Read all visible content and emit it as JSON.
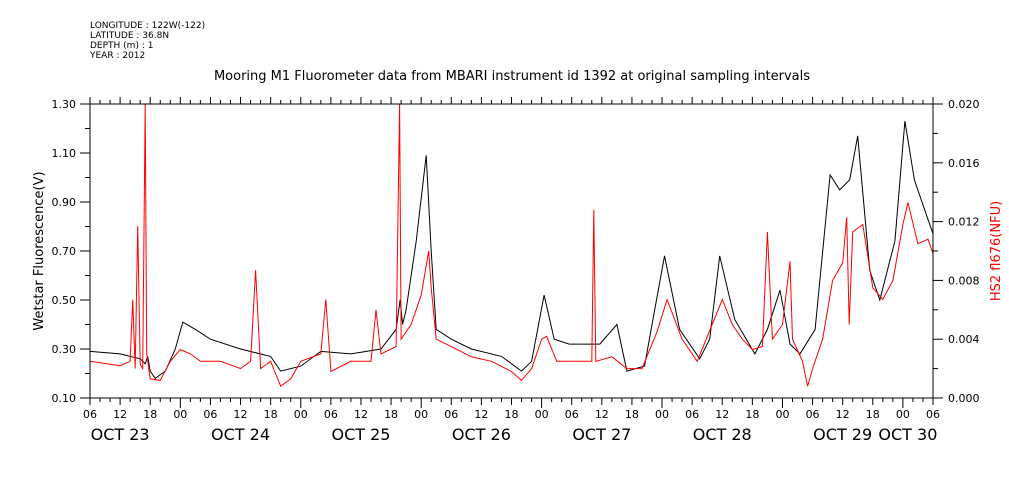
{
  "header": {
    "longitude": "LONGITUDE : 122W(-122)",
    "latitude": "LATITUDE : 36.8N",
    "depth": "DEPTH (m) : 1",
    "year": "YEAR : 2012"
  },
  "chart_data": {
    "type": "line",
    "title": "Mooring M1 Fluorometer data from MBARI instrument id 1392 at original sampling intervals",
    "xlabel": "",
    "ylabel": "Wetstar Fluorescence(V)",
    "y2label": "HS2 fl676(NFU)",
    "x_units": "hours since OCT 23 06:00, 2012",
    "xlim": [
      0,
      168
    ],
    "ylim": [
      0.1,
      1.3
    ],
    "y2lim": [
      0.0,
      0.02
    ],
    "yticks": [
      "0.10",
      "0.30",
      "0.50",
      "0.70",
      "0.90",
      "1.10",
      "1.30"
    ],
    "y2ticks": [
      "0.000",
      "0.004",
      "0.008",
      "0.012",
      "0.016",
      "0.020"
    ],
    "xticks_hours": [
      "06",
      "12",
      "18",
      "00",
      "06",
      "12",
      "18",
      "00",
      "06",
      "12",
      "18",
      "00",
      "06",
      "12",
      "18",
      "00",
      "06",
      "12",
      "18",
      "00",
      "06",
      "12",
      "18",
      "00",
      "06",
      "12",
      "18",
      "00",
      "06"
    ],
    "day_labels": [
      {
        "label": "OCT 23",
        "hour": 6
      },
      {
        "label": "OCT 24",
        "hour": 30
      },
      {
        "label": "OCT 25",
        "hour": 54
      },
      {
        "label": "OCT 26",
        "hour": 78
      },
      {
        "label": "OCT 27",
        "hour": 102
      },
      {
        "label": "OCT 28",
        "hour": 126
      },
      {
        "label": "OCT 29",
        "hour": 150
      },
      {
        "label": "OCT 30",
        "hour": 163
      }
    ],
    "series": [
      {
        "name": "Wetstar Fluorescence(V)",
        "axis": "left",
        "color": "#000000",
        "x": [
          0,
          6,
          10,
          11,
          11.5,
          12,
          13,
          15,
          17,
          18.5,
          21,
          24,
          30,
          36,
          38,
          42,
          46,
          52,
          58,
          61,
          61.8,
          62.3,
          63,
          65,
          67,
          68,
          69,
          72,
          76,
          82,
          86,
          88,
          90.5,
          92.5,
          95.5,
          101.6,
          105,
          107,
          110.5,
          114.5,
          117.5,
          121.5,
          123.5,
          125.5,
          128.5,
          132.5,
          135,
          137.5,
          139.5,
          141.5,
          144.5,
          147.5,
          149.4,
          151.4,
          153,
          155.4,
          157.4,
          160.4,
          162.4,
          164.3,
          166.3,
          168
        ],
        "y": [
          0.29,
          0.28,
          0.26,
          0.24,
          0.27,
          0.21,
          0.18,
          0.21,
          0.3,
          0.41,
          0.38,
          0.34,
          0.3,
          0.27,
          0.21,
          0.23,
          0.29,
          0.28,
          0.3,
          0.38,
          0.5,
          0.4,
          0.46,
          0.74,
          1.09,
          0.7,
          0.38,
          0.34,
          0.3,
          0.27,
          0.21,
          0.25,
          0.52,
          0.34,
          0.32,
          0.32,
          0.4,
          0.21,
          0.23,
          0.68,
          0.38,
          0.26,
          0.34,
          0.68,
          0.42,
          0.28,
          0.38,
          0.54,
          0.32,
          0.28,
          0.38,
          1.01,
          0.95,
          0.99,
          1.17,
          0.62,
          0.5,
          0.74,
          1.23,
          0.99,
          0.87,
          0.77
        ]
      },
      {
        "name": "HS2 fl676(NFU)",
        "axis": "right",
        "color": "#ff0000",
        "x": [
          0,
          6,
          8,
          8.5,
          9,
          9.5,
          10,
          10.5,
          11,
          11.3,
          12,
          14,
          16,
          18,
          20,
          22,
          26,
          30,
          32,
          33,
          34,
          36,
          38,
          40,
          42,
          46,
          47,
          48,
          52,
          56,
          57,
          58,
          61,
          61.7,
          62,
          64,
          66,
          67.5,
          68,
          69,
          72,
          76,
          80,
          84,
          86,
          88,
          90,
          91,
          93,
          96,
          100,
          100.4,
          100.8,
          104,
          107,
          110,
          113,
          115,
          118,
          121,
          124,
          126,
          128,
          130,
          132,
          134,
          135,
          136,
          138,
          139.5,
          140,
          142,
          143,
          144,
          146,
          148,
          150,
          150.8,
          151.3,
          152,
          154,
          156,
          158,
          160,
          162,
          163,
          165,
          167,
          168
        ],
        "y": [
          0.0025,
          0.0022,
          0.0025,
          0.0067,
          0.002,
          0.0117,
          0.0023,
          0.002,
          0.02,
          0.003,
          0.0013,
          0.0012,
          0.0025,
          0.0033,
          0.003,
          0.0025,
          0.0025,
          0.002,
          0.0025,
          0.0087,
          0.002,
          0.0025,
          0.0008,
          0.0013,
          0.0025,
          0.003,
          0.0067,
          0.0018,
          0.0025,
          0.0025,
          0.006,
          0.003,
          0.0035,
          0.02,
          0.004,
          0.005,
          0.007,
          0.01,
          0.0075,
          0.004,
          0.0035,
          0.0028,
          0.0025,
          0.0018,
          0.0012,
          0.002,
          0.004,
          0.0042,
          0.0025,
          0.0025,
          0.0025,
          0.0128,
          0.0025,
          0.0028,
          0.002,
          0.002,
          0.0045,
          0.0067,
          0.004,
          0.0025,
          0.005,
          0.0067,
          0.005,
          0.004,
          0.0033,
          0.0035,
          0.0113,
          0.004,
          0.005,
          0.0093,
          0.004,
          0.0025,
          0.0008,
          0.002,
          0.004,
          0.008,
          0.0092,
          0.0123,
          0.005,
          0.0113,
          0.0118,
          0.0075,
          0.0067,
          0.008,
          0.0118,
          0.0133,
          0.0105,
          0.0108,
          0.0098
        ]
      }
    ]
  }
}
